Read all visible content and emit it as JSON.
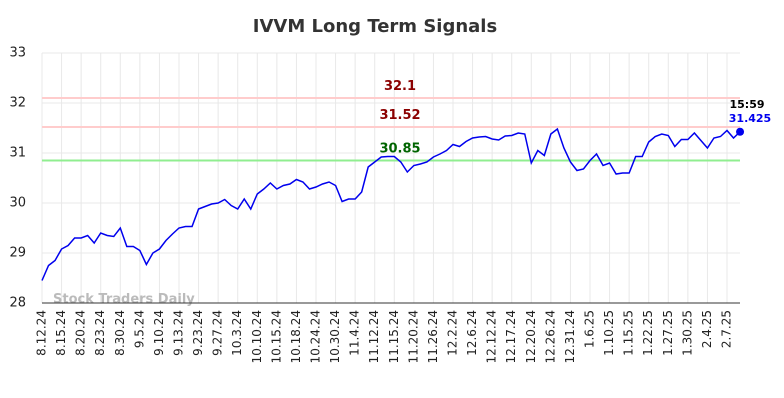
{
  "chart_data": {
    "type": "line",
    "title": "IVVM Long Term Signals",
    "watermark": "Stock Traders Daily",
    "categories": [
      "8.12.24",
      null,
      null,
      "8.15.24",
      null,
      null,
      "8.20.24",
      null,
      null,
      "8.23.24",
      null,
      null,
      "8.30.24",
      null,
      null,
      "9.5.24",
      null,
      null,
      "9.10.24",
      null,
      null,
      "9.13.24",
      null,
      null,
      "9.23.24",
      null,
      null,
      "9.27.24",
      null,
      null,
      "10.3.24",
      null,
      null,
      "10.10.24",
      null,
      null,
      "10.15.24",
      null,
      null,
      "10.18.24",
      null,
      null,
      "10.24.24",
      null,
      null,
      "10.30.24",
      null,
      null,
      "11.4.24",
      null,
      null,
      "11.12.24",
      null,
      null,
      "11.15.24",
      null,
      null,
      "11.20.24",
      null,
      null,
      "11.26.24",
      null,
      null,
      "12.2.24",
      null,
      null,
      "12.6.24",
      null,
      null,
      "12.12.24",
      null,
      null,
      "12.17.24",
      null,
      null,
      "12.20.24",
      null,
      null,
      "12.26.24",
      null,
      null,
      "12.31.24",
      null,
      null,
      "1.6.25",
      null,
      null,
      "1.10.25",
      null,
      null,
      "1.15.25",
      null,
      null,
      "1.22.25",
      null,
      null,
      "1.27.25",
      null,
      null,
      "1.30.25",
      null,
      null,
      "2.4.25",
      null,
      null,
      "2.7.25",
      null,
      null
    ],
    "values": [
      28.45,
      28.75,
      28.85,
      29.08,
      29.15,
      29.3,
      29.3,
      29.35,
      29.2,
      29.4,
      29.35,
      29.33,
      29.5,
      29.13,
      29.13,
      29.05,
      28.77,
      29.0,
      29.08,
      29.25,
      29.38,
      29.5,
      29.53,
      29.53,
      29.88,
      29.93,
      29.98,
      30.0,
      30.07,
      29.95,
      29.88,
      30.08,
      29.88,
      30.18,
      30.28,
      30.4,
      30.28,
      30.35,
      30.38,
      30.47,
      30.42,
      30.28,
      30.32,
      30.38,
      30.42,
      30.35,
      30.03,
      30.08,
      30.08,
      30.22,
      30.72,
      30.82,
      30.92,
      30.93,
      30.93,
      30.82,
      30.62,
      30.75,
      30.78,
      30.82,
      30.92,
      30.98,
      31.05,
      31.17,
      31.13,
      31.23,
      31.3,
      31.32,
      31.33,
      31.28,
      31.26,
      31.34,
      31.35,
      31.4,
      31.38,
      30.8,
      31.05,
      30.95,
      31.38,
      31.48,
      31.1,
      30.82,
      30.65,
      30.68,
      30.85,
      30.98,
      30.75,
      30.8,
      30.58,
      30.6,
      30.6,
      30.93,
      30.93,
      31.22,
      31.33,
      31.38,
      31.35,
      31.13,
      31.27,
      31.27,
      31.4,
      31.25,
      31.1,
      31.3,
      31.33,
      31.45,
      31.3,
      31.425
    ],
    "color": "#0000ee",
    "last_time": "15:59",
    "hlines": [
      {
        "value": 32.1,
        "color": "#ffcccc",
        "label_color": "#8b0000"
      },
      {
        "value": 31.52,
        "color": "#ffcccc",
        "label_color": "#8b0000"
      },
      {
        "value": 30.85,
        "color": "#90ee90",
        "label_color": "#006400"
      }
    ],
    "ylim": [
      28,
      33
    ],
    "yticks": [
      28,
      29,
      30,
      31,
      32,
      33
    ],
    "grid": true
  }
}
